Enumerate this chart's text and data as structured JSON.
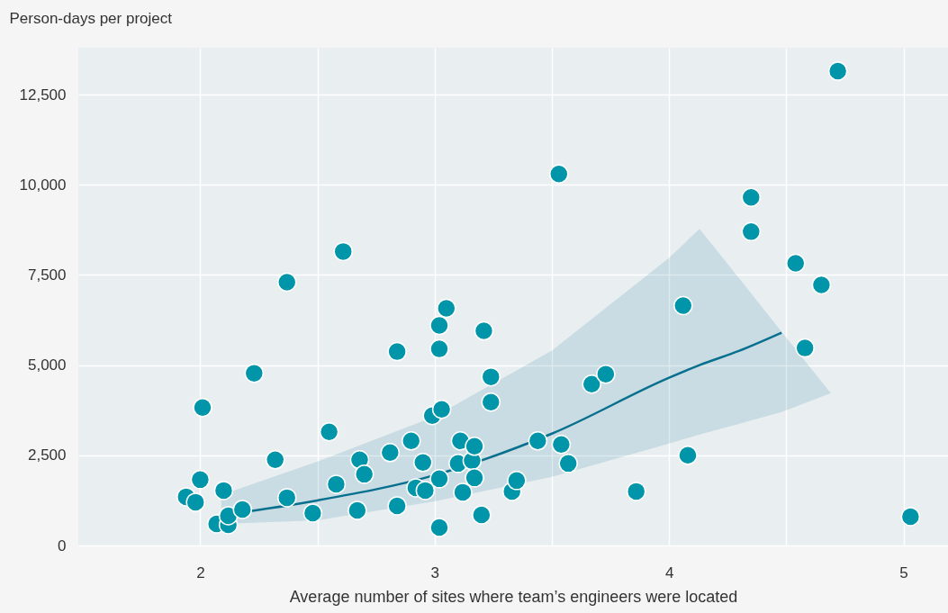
{
  "chart_data": {
    "type": "scatter",
    "xlabel": "Average number of sites where team’s engineers were located",
    "ylabel": "Person-days per project",
    "xlim": [
      1.48,
      5.19
    ],
    "ylim": [
      0,
      13800
    ],
    "xticks": [
      2,
      {
        "value": 2.5,
        "label": null
      },
      3,
      {
        "value": 3.5,
        "label": null
      },
      4,
      {
        "value": 4.5,
        "label": null
      },
      5
    ],
    "yticks": [
      0,
      {
        "value": 2500,
        "label": "2,500"
      },
      {
        "value": 5000,
        "label": "5,000"
      },
      {
        "value": 7500,
        "label": "7,500"
      },
      {
        "value": 10000,
        "label": "10,000"
      },
      {
        "value": 12500,
        "label": "12,500"
      }
    ],
    "grid": true,
    "series": [
      {
        "type": "scatter",
        "color": "#0095a8",
        "marker": "circle",
        "x": [
          1.94,
          1.98,
          2.0,
          2.01,
          2.07,
          2.1,
          2.12,
          2.12,
          2.18,
          2.23,
          2.32,
          2.37,
          2.37,
          2.48,
          2.55,
          2.58,
          2.61,
          2.67,
          2.68,
          2.7,
          2.81,
          2.84,
          2.84,
          2.9,
          2.92,
          2.95,
          2.96,
          2.99,
          3.02,
          3.02,
          3.02,
          3.02,
          3.03,
          3.05,
          3.1,
          3.11,
          3.12,
          3.16,
          3.17,
          3.17,
          3.2,
          3.21,
          3.24,
          3.24,
          3.33,
          3.35,
          3.44,
          3.53,
          3.54,
          3.57,
          3.67,
          3.73,
          3.86,
          4.06,
          4.08,
          4.35,
          4.35,
          4.54,
          4.65,
          4.58,
          4.72,
          5.03
        ],
        "values": [
          1350,
          1200,
          1825,
          3825,
          600,
          1525,
          575,
          825,
          1000,
          4775,
          2375,
          1325,
          7300,
          900,
          3150,
          1700,
          8150,
          975,
          2375,
          1975,
          2575,
          5375,
          1100,
          2900,
          1600,
          2300,
          1525,
          3600,
          6100,
          5450,
          1850,
          500,
          3775,
          6575,
          2275,
          2900,
          1475,
          2350,
          2750,
          1875,
          850,
          5950,
          3975,
          4675,
          1500,
          1800,
          2900,
          10300,
          2800,
          2275,
          4475,
          4750,
          1500,
          6650,
          2500,
          8700,
          9650,
          7825,
          7225,
          5475,
          13150,
          800
        ]
      },
      {
        "type": "line",
        "color": "#08708f",
        "x": [
          2.09,
          2.5,
          3,
          3.5,
          4,
          4.13,
          4.3,
          4.48,
          4.69
        ],
        "values": [
          840,
          1250,
          1950,
          3100,
          4650,
          5000,
          5400,
          5900,
          null
        ],
        "lower": [
          600,
          700,
          1225,
          1900,
          2825,
          3075,
          3375,
          3700,
          4225
        ],
        "upper": [
          1400,
          2325,
          3575,
          5400,
          7975,
          8775,
          7400,
          5925,
          4225
        ]
      }
    ]
  }
}
